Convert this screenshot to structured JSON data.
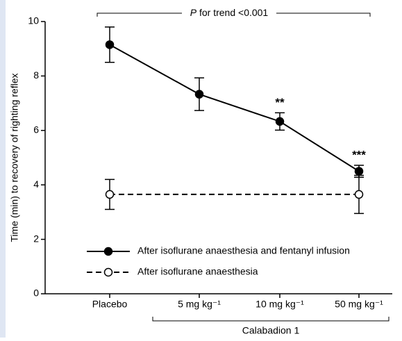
{
  "chart_data": {
    "type": "line",
    "y_label": "Time (min) to recovery of righting reflex",
    "categories": [
      "Placebo",
      "5 mg kg⁻¹",
      "10 mg kg⁻¹",
      "50 mg kg⁻¹"
    ],
    "group_label": "Calabadion 1",
    "trend_label": {
      "italic": "P",
      "text": "for trend <0.001"
    },
    "series": [
      {
        "name": "After isoflurane anaesthesia and fentanyl infusion",
        "color": "#000000",
        "marker": "filled",
        "dash": false,
        "values": [
          9.15,
          7.33,
          6.33,
          4.5
        ],
        "errors": [
          0.65,
          0.6,
          0.32,
          0.22
        ],
        "significance": [
          null,
          null,
          "**",
          "***"
        ]
      },
      {
        "name": "After isoflurane anaesthesia",
        "color": "#000000",
        "marker": "open",
        "dash": true,
        "values": [
          3.65,
          null,
          null,
          3.65
        ],
        "errors": [
          0.55,
          null,
          null,
          0.7
        ]
      }
    ],
    "ylim": [
      0,
      10
    ],
    "yticks": [
      0,
      2,
      4,
      6,
      8,
      10
    ],
    "grid": false
  }
}
